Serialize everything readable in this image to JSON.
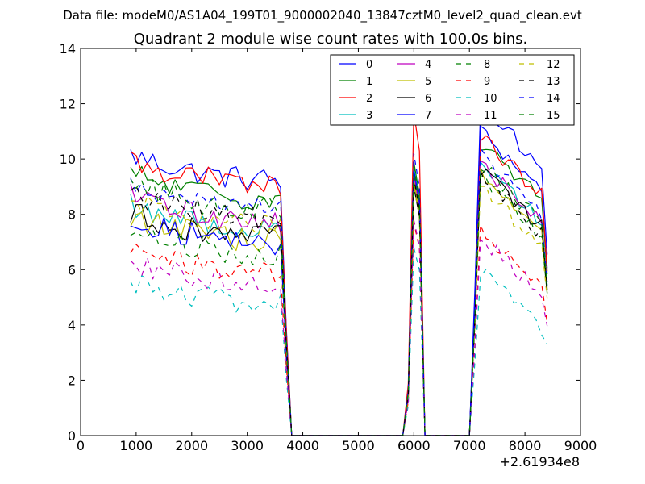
{
  "chart_data": {
    "type": "line",
    "suptitle": "Data file: modeM0/AS1A04_199T01_9000002040_13847cztM0_level2_quad_clean.evt",
    "title": "Quadrant 2 module wise count rates with 100.0s bins.",
    "x_offset_label": "+2.61934e8",
    "xlim": [
      0,
      9000
    ],
    "ylim": [
      0,
      14
    ],
    "xticks": [
      0,
      1000,
      2000,
      3000,
      4000,
      5000,
      6000,
      7000,
      8000,
      9000
    ],
    "yticks": [
      0,
      2,
      4,
      6,
      8,
      10,
      12,
      14
    ],
    "xtick_labels": [
      "0",
      "1000",
      "2000",
      "3000",
      "4000",
      "5000",
      "6000",
      "7000",
      "8000",
      "9000"
    ],
    "ytick_labels": [
      "0",
      "2",
      "4",
      "6",
      "8",
      "10",
      "12",
      "14"
    ],
    "legend_location": "upper-right",
    "x": [
      900,
      1000,
      1100,
      1200,
      1300,
      1400,
      1500,
      1600,
      1700,
      1800,
      1900,
      2000,
      2100,
      2200,
      2300,
      2400,
      2500,
      2600,
      2700,
      2800,
      2900,
      3000,
      3100,
      3200,
      3300,
      3400,
      3500,
      3600,
      3700,
      3800,
      3900,
      4000,
      4100,
      4200,
      4300,
      4400,
      4500,
      4600,
      4700,
      4800,
      4900,
      5000,
      5100,
      5200,
      5300,
      5400,
      5500,
      5600,
      5700,
      5800,
      5900,
      6000,
      6100,
      6200,
      6300,
      6400,
      6500,
      6600,
      6700,
      6800,
      6900,
      7000,
      7100,
      7200,
      7300,
      7400,
      7500,
      7600,
      7700,
      7800,
      7900,
      8000,
      8100,
      8200,
      8300,
      8400
    ],
    "series": [
      {
        "name": "0",
        "color": "#0000ff",
        "dash": "solid",
        "level": 9.6,
        "peak": 9.6,
        "late": 11.0
      },
      {
        "name": "1",
        "color": "#008000",
        "dash": "solid",
        "level": 8.9,
        "peak": 9.9,
        "late": 10.6
      },
      {
        "name": "2",
        "color": "#ff0000",
        "dash": "solid",
        "level": 9.4,
        "peak": 11.7,
        "late": 10.8
      },
      {
        "name": "3",
        "color": "#00bfbf",
        "dash": "solid",
        "level": 7.8,
        "peak": 9.7,
        "late": 9.9
      },
      {
        "name": "4",
        "color": "#bf00bf",
        "dash": "solid",
        "level": 8.1,
        "peak": 9.4,
        "late": 9.8
      },
      {
        "name": "5",
        "color": "#bfbf00",
        "dash": "solid",
        "level": 7.4,
        "peak": 9.2,
        "late": 9.4
      },
      {
        "name": "6",
        "color": "#000000",
        "dash": "solid",
        "level": 7.5,
        "peak": 9.0,
        "late": 9.6
      },
      {
        "name": "7",
        "color": "#0000ff",
        "dash": "solid",
        "level": 7.3,
        "peak": 9.6,
        "late": 11.9
      },
      {
        "name": "8",
        "color": "#008000",
        "dash": "dashed",
        "level": 6.9,
        "peak": 9.4,
        "late": 9.3
      },
      {
        "name": "9",
        "color": "#ff0000",
        "dash": "dashed",
        "level": 6.2,
        "peak": 7.7,
        "late": 7.4
      },
      {
        "name": "10",
        "color": "#00bfbf",
        "dash": "dashed",
        "level": 5.1,
        "peak": 6.8,
        "late": 6.0
      },
      {
        "name": "11",
        "color": "#bf00bf",
        "dash": "dashed",
        "level": 5.8,
        "peak": 7.8,
        "late": 7.2
      },
      {
        "name": "12",
        "color": "#bfbf00",
        "dash": "dashed",
        "level": 7.9,
        "peak": 9.0,
        "late": 9.0
      },
      {
        "name": "13",
        "color": "#000000",
        "dash": "dashed",
        "level": 8.2,
        "peak": 9.3,
        "late": 9.4
      },
      {
        "name": "14",
        "color": "#0000ff",
        "dash": "dashed",
        "level": 8.6,
        "peak": 10.2,
        "late": 10.1
      },
      {
        "name": "15",
        "color": "#008000",
        "dash": "dashed",
        "level": 8.5,
        "peak": 9.7,
        "late": 9.8
      }
    ]
  }
}
